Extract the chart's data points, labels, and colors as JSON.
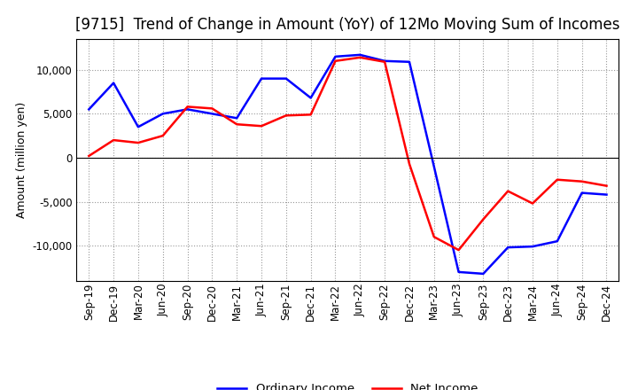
{
  "title": "[9715]  Trend of Change in Amount (YoY) of 12Mo Moving Sum of Incomes",
  "ylabel": "Amount (million yen)",
  "x_labels": [
    "Sep-19",
    "Dec-19",
    "Mar-20",
    "Jun-20",
    "Sep-20",
    "Dec-20",
    "Mar-21",
    "Jun-21",
    "Sep-21",
    "Dec-21",
    "Mar-22",
    "Jun-22",
    "Sep-22",
    "Dec-22",
    "Mar-23",
    "Jun-23",
    "Sep-23",
    "Dec-23",
    "Mar-24",
    "Jun-24",
    "Sep-24",
    "Dec-24"
  ],
  "ordinary_income": [
    5500,
    8500,
    3500,
    5000,
    5500,
    5000,
    4500,
    9000,
    9000,
    6800,
    11500,
    11700,
    11000,
    10900,
    -1000,
    -13000,
    -13200,
    -10200,
    -10100,
    -9500,
    -4000,
    -4200
  ],
  "net_income": [
    200,
    2000,
    1700,
    2500,
    5800,
    5600,
    3800,
    3600,
    4800,
    4900,
    11000,
    11400,
    10900,
    -700,
    -9000,
    -10500,
    -7000,
    -3800,
    -5200,
    -2500,
    -2700,
    -3200
  ],
  "ordinary_income_color": "#0000FF",
  "net_income_color": "#FF0000",
  "background_color": "#FFFFFF",
  "plot_bg_color": "#FFFFFF",
  "grid_color": "#AAAAAA",
  "ylim": [
    -14000,
    13500
  ],
  "yticks": [
    -10000,
    -5000,
    0,
    5000,
    10000
  ],
  "legend_labels": [
    "Ordinary Income",
    "Net Income"
  ],
  "title_fontsize": 12,
  "axis_fontsize": 9,
  "tick_fontsize": 8.5,
  "line_width": 1.8
}
